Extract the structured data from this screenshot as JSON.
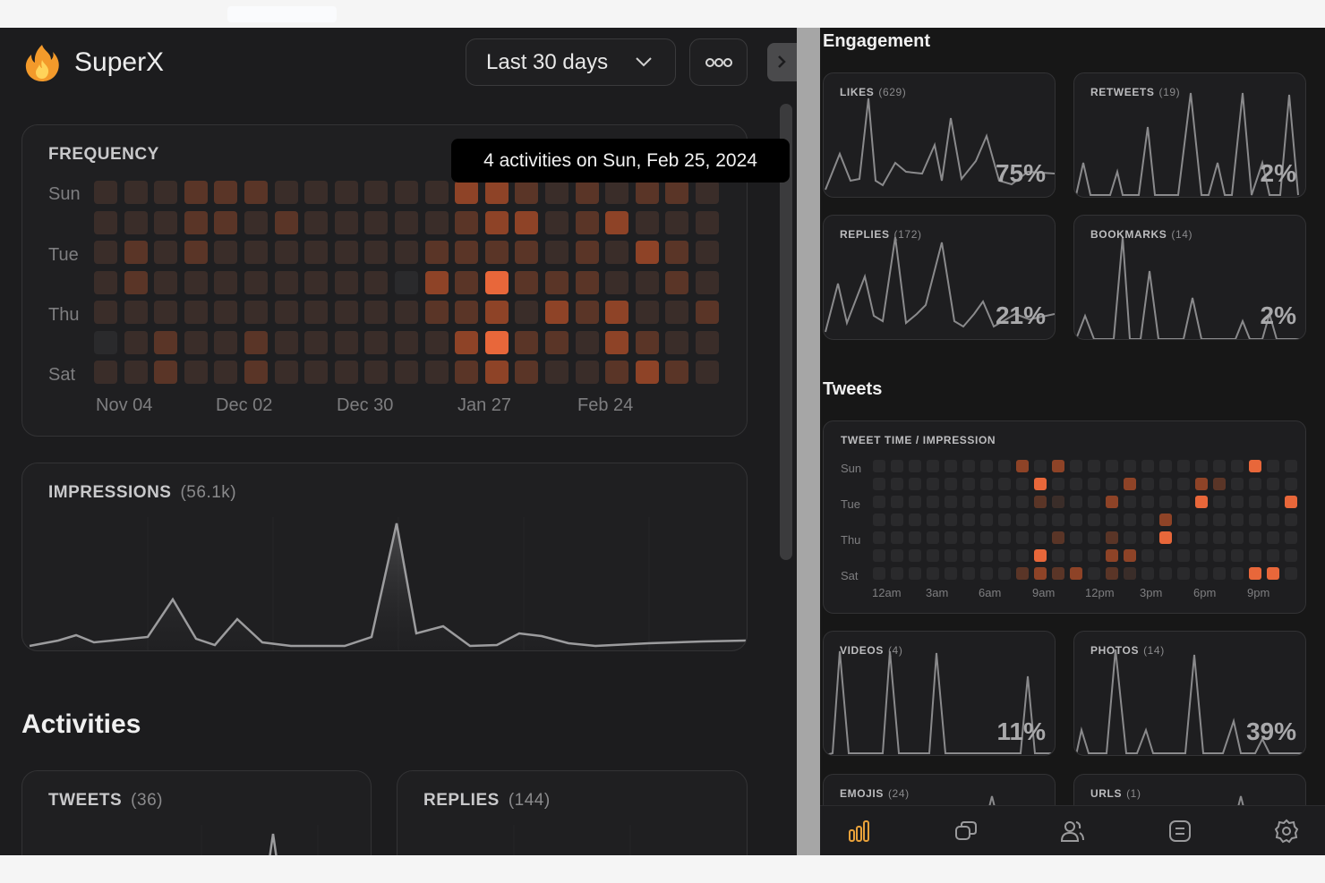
{
  "app": {
    "name": "SuperX"
  },
  "header": {
    "range_label": "Last 30 days"
  },
  "frequency": {
    "title": "FREQUENCY",
    "day_labels": [
      "Sun",
      "Tue",
      "Thu",
      "Sat"
    ],
    "month_labels": [
      "Nov 04",
      "Dec 02",
      "Dec 30",
      "Jan 27",
      "Feb 24"
    ],
    "tooltip": "4 activities on Sun, Feb 25, 2024",
    "levels": [
      [
        1,
        1,
        1,
        2,
        2,
        2,
        1,
        1,
        1,
        1,
        1,
        1,
        3,
        3,
        2,
        1,
        2,
        1,
        2,
        2,
        1
      ],
      [
        1,
        1,
        1,
        2,
        2,
        1,
        2,
        1,
        1,
        1,
        1,
        1,
        2,
        3,
        3,
        1,
        2,
        3,
        1,
        1,
        1
      ],
      [
        1,
        2,
        1,
        2,
        1,
        1,
        1,
        1,
        1,
        1,
        1,
        2,
        2,
        2,
        2,
        1,
        2,
        1,
        3,
        2,
        1
      ],
      [
        1,
        2,
        1,
        1,
        1,
        1,
        1,
        1,
        1,
        1,
        0,
        3,
        2,
        4,
        2,
        2,
        2,
        1,
        1,
        2,
        1
      ],
      [
        1,
        1,
        1,
        1,
        1,
        1,
        1,
        1,
        1,
        1,
        1,
        2,
        2,
        3,
        1,
        3,
        2,
        3,
        1,
        1,
        2
      ],
      [
        0,
        1,
        2,
        1,
        1,
        2,
        1,
        1,
        1,
        1,
        1,
        1,
        3,
        4,
        2,
        2,
        1,
        3,
        2,
        1,
        1
      ],
      [
        1,
        1,
        2,
        1,
        1,
        2,
        1,
        1,
        1,
        1,
        1,
        1,
        2,
        3,
        2,
        1,
        1,
        2,
        3,
        2,
        1
      ]
    ]
  },
  "impressions": {
    "title": "IMPRESSIONS",
    "count": "(56.1k)"
  },
  "activities": {
    "title": "Activities",
    "tweets": {
      "title": "TWEETS",
      "count": "(36)"
    },
    "replies": {
      "title": "REPLIES",
      "count": "(144)"
    }
  },
  "engagement": {
    "title": "Engagement",
    "cards": [
      {
        "title": "LIKES",
        "count": "(629)",
        "pct": "75%"
      },
      {
        "title": "RETWEETS",
        "count": "(19)",
        "pct": "2%"
      },
      {
        "title": "REPLIES",
        "count": "(172)",
        "pct": "21%"
      },
      {
        "title": "BOOKMARKS",
        "count": "(14)",
        "pct": "2%"
      }
    ]
  },
  "tweets_section": {
    "title": "Tweets",
    "tweet_time": {
      "title": "TWEET TIME / IMPRESSION",
      "day_labels": [
        "Sun",
        "Tue",
        "Thu",
        "Sat"
      ],
      "hour_labels": [
        "12am",
        "3am",
        "6am",
        "9am",
        "12pm",
        "3pm",
        "6pm",
        "9pm"
      ]
    },
    "cards": [
      {
        "title": "VIDEOS",
        "count": "(4)",
        "pct": "11%"
      },
      {
        "title": "PHOTOS",
        "count": "(14)",
        "pct": "39%"
      },
      {
        "title": "EMOJIS",
        "count": "(24)"
      },
      {
        "title": "URLS",
        "count": "(1)"
      }
    ]
  },
  "tabs": [
    {
      "icon": "chart-bars-icon",
      "active": true
    },
    {
      "icon": "chat-bubbles-icon",
      "active": false
    },
    {
      "icon": "users-icon",
      "active": false
    },
    {
      "icon": "list-icon",
      "active": false
    },
    {
      "icon": "gear-icon",
      "active": false
    }
  ],
  "colors": {
    "accent": "#e8673a",
    "heat": [
      "#2a2a2c",
      "#3a2d29",
      "#5a3527",
      "#8e4327",
      "#e8673a"
    ]
  }
}
